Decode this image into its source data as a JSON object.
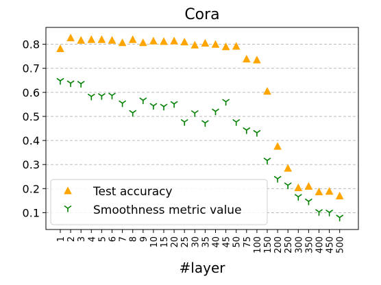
{
  "chart_data": {
    "type": "scatter",
    "title": "Cora",
    "xlabel": "#layer",
    "ylabel": "",
    "categories": [
      "1",
      "2",
      "3",
      "4",
      "5",
      "6",
      "7",
      "8",
      "9",
      "10",
      "15",
      "20",
      "25",
      "30",
      "35",
      "40",
      "45",
      "50",
      "75",
      "100",
      "150",
      "200",
      "250",
      "300",
      "350",
      "400",
      "450",
      "500"
    ],
    "yticks": [
      "0.1",
      "0.2",
      "0.3",
      "0.4",
      "0.5",
      "0.6",
      "0.7",
      "0.8"
    ],
    "ylim": [
      0.03,
      0.87
    ],
    "grid": "horizontal dashed",
    "legend_position": "lower-left",
    "series": [
      {
        "name": "Test accuracy",
        "marker": "triangle",
        "color": "#ffa500",
        "values": [
          0.78,
          0.825,
          0.815,
          0.818,
          0.818,
          0.815,
          0.805,
          0.818,
          0.805,
          0.812,
          0.81,
          0.812,
          0.808,
          0.795,
          0.803,
          0.798,
          0.788,
          0.79,
          0.737,
          0.733,
          0.603,
          0.374,
          0.283,
          0.202,
          0.208,
          0.185,
          0.187,
          0.168
        ]
      },
      {
        "name": "Smoothness metric value",
        "marker": "tri_down",
        "color": "#008000",
        "values": [
          0.648,
          0.638,
          0.636,
          0.583,
          0.585,
          0.587,
          0.555,
          0.515,
          0.567,
          0.544,
          0.541,
          0.552,
          0.477,
          0.514,
          0.473,
          0.521,
          0.561,
          0.477,
          0.443,
          0.432,
          0.317,
          0.241,
          0.214,
          0.166,
          0.147,
          0.103,
          0.101,
          0.08
        ]
      }
    ]
  }
}
